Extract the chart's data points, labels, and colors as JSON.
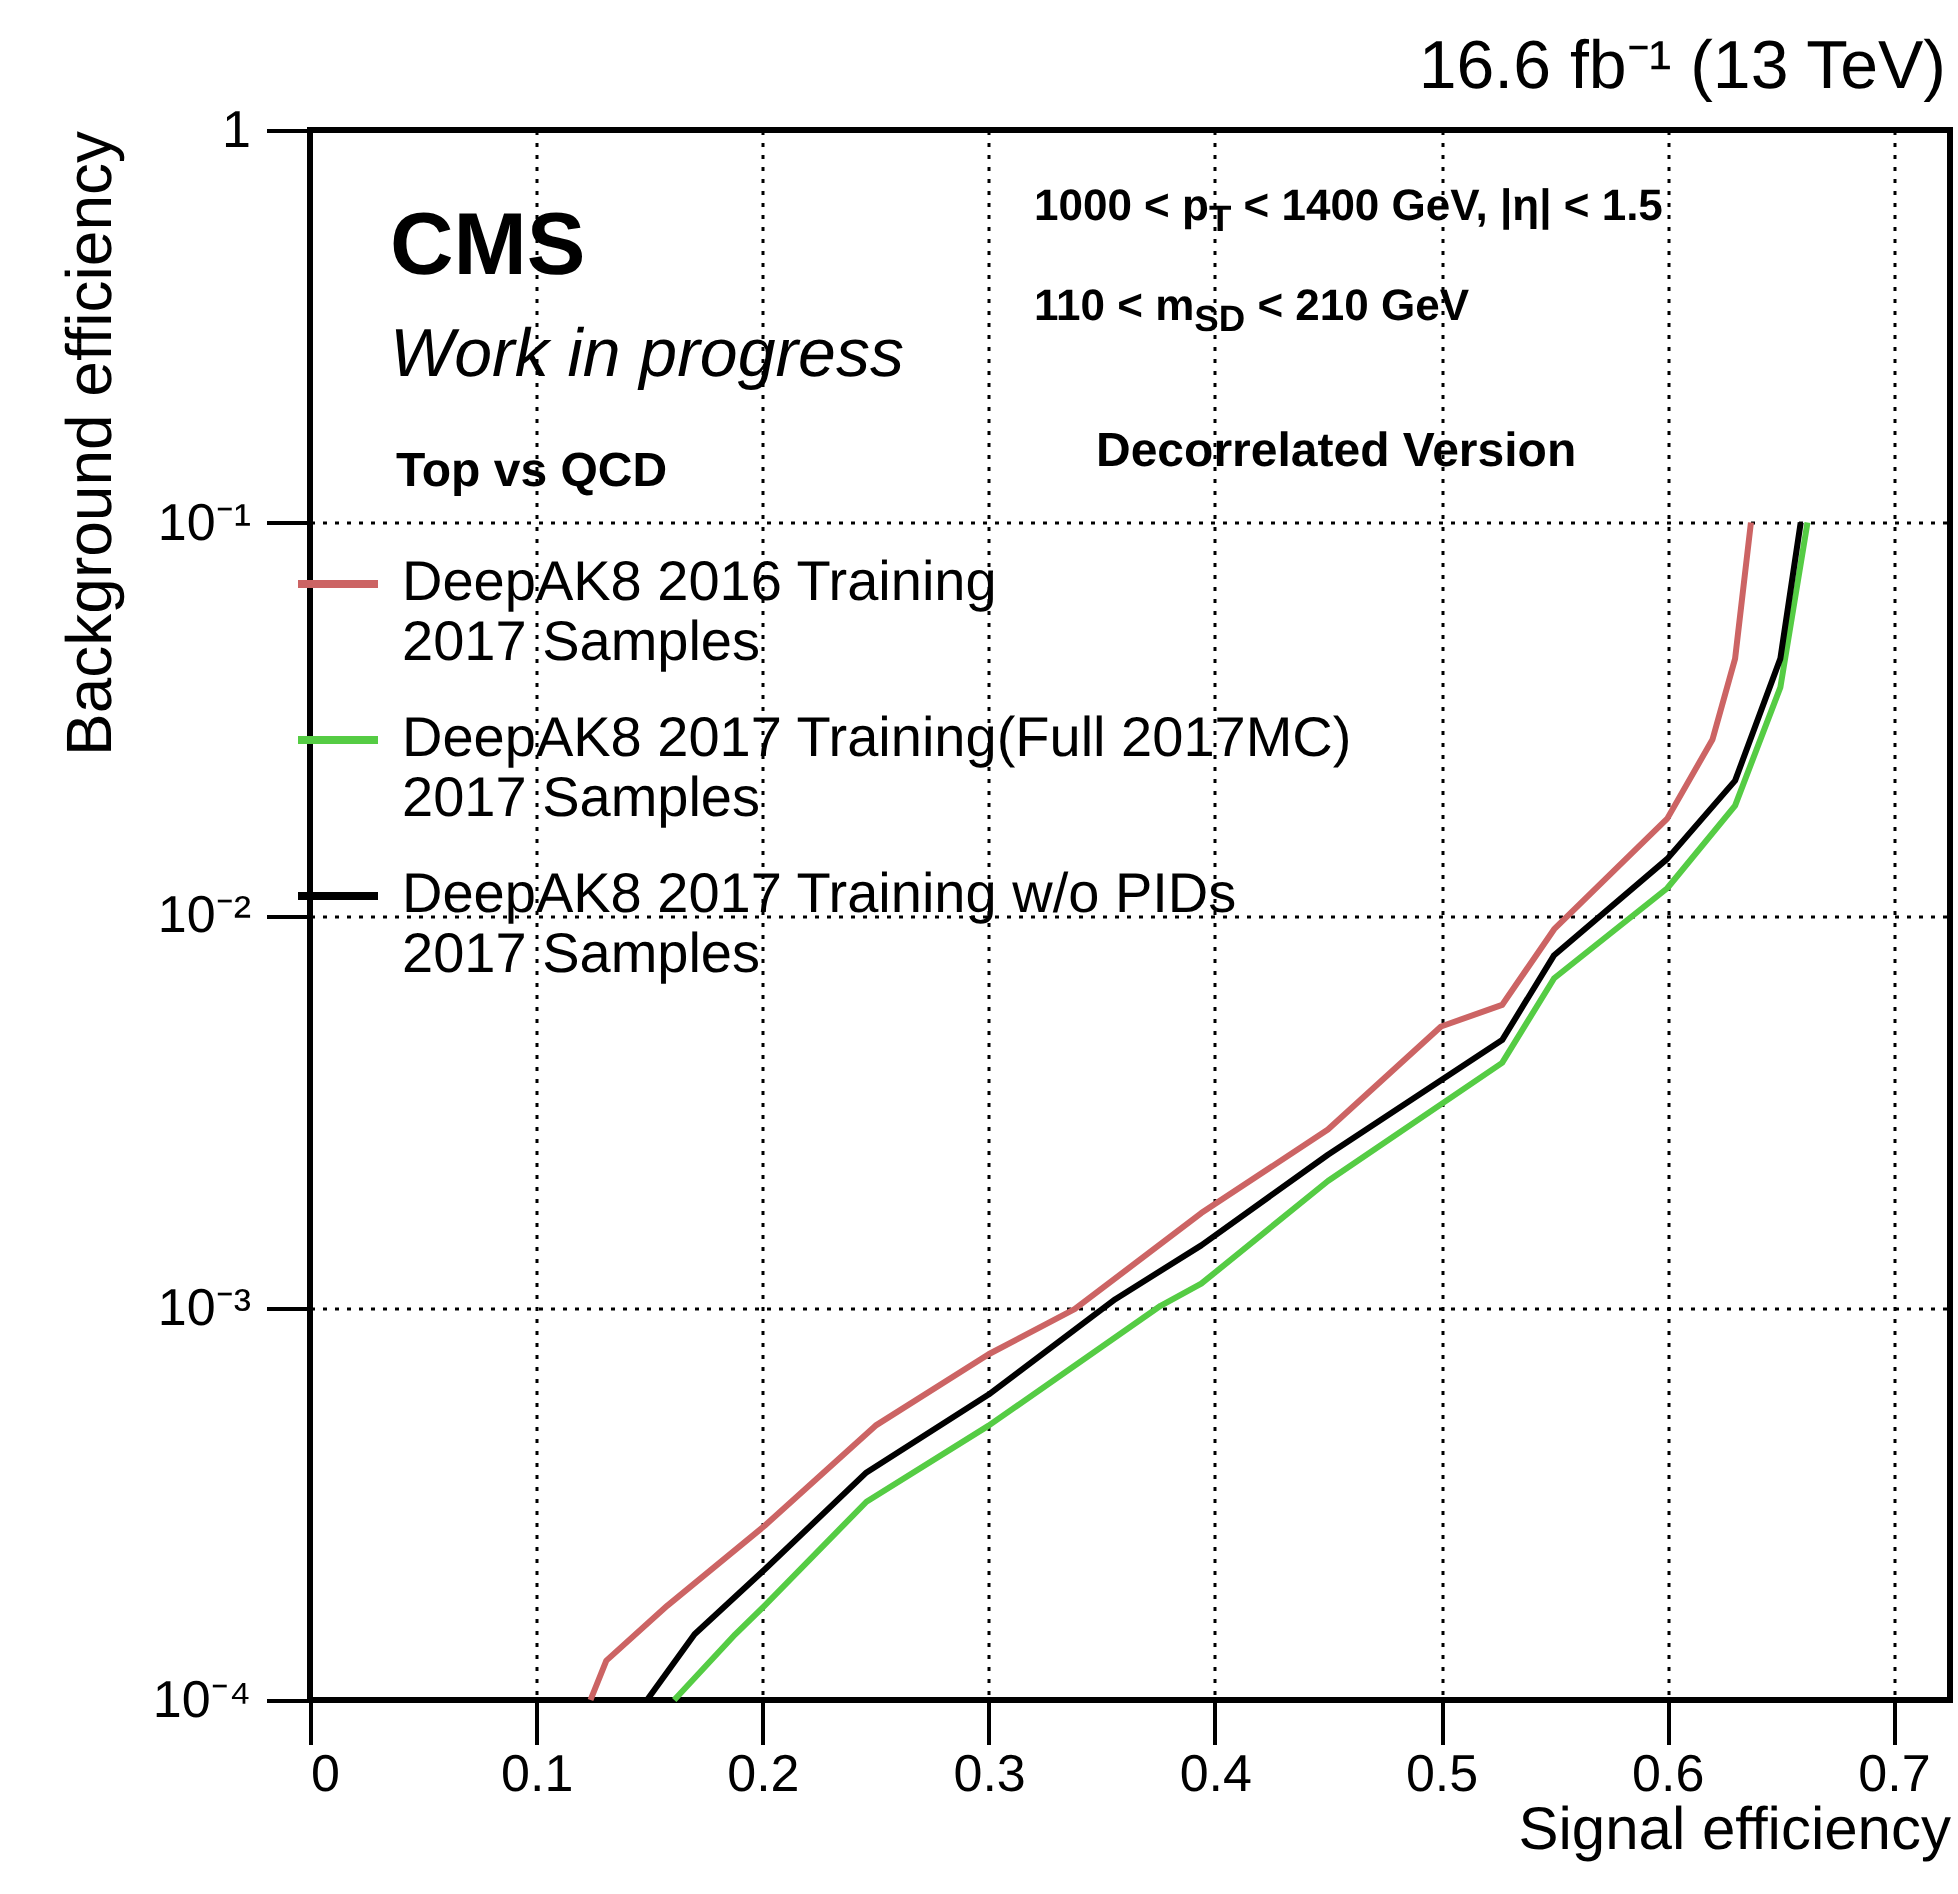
{
  "chart_data": {
    "type": "line",
    "title": "16.6 fb⁻¹ (13 TeV)",
    "xlabel": "Signal efficiency",
    "ylabel": "Background efficiency",
    "annotations": [
      "CMS",
      "Work in progress",
      "Top vs QCD",
      "1000 < p$_{T}$ < 1400 GeV, |η| < 1.5",
      "110 < m$_{SD}$ < 210 GeV",
      "Decorrelated Version"
    ],
    "xlim": [
      0,
      0.725
    ],
    "xticks": [
      0,
      0.1,
      0.2,
      0.3,
      0.4,
      0.5,
      0.6,
      0.7
    ],
    "ylim": [
      0.0001,
      1
    ],
    "yticks": [
      {
        "value": 0.0001,
        "label": "10⁻⁴"
      },
      {
        "value": 0.001,
        "label": "10⁻³"
      },
      {
        "value": 0.01,
        "label": "10⁻²"
      },
      {
        "value": 0.1,
        "label": "10⁻¹"
      },
      1
    ],
    "log": "y",
    "grid": true,
    "legend": "top left",
    "series": [
      {
        "name": "DeepAK8 2016 Training\n2017 Samples",
        "color": "#cc6464",
        "x": [
          0.124,
          0.131,
          0.158,
          0.201,
          0.25,
          0.3,
          0.338,
          0.394,
          0.45,
          0.5,
          0.527,
          0.55,
          0.6,
          0.62,
          0.63,
          0.637
        ],
        "values": [
          0.0001,
          0.000126,
          0.000174,
          0.000278,
          0.0005,
          0.00076,
          0.00099,
          0.00174,
          0.00284,
          0.0052,
          0.0059,
          0.0092,
          0.0176,
          0.028,
          0.045,
          0.1
        ]
      },
      {
        "name": "DeepAK8 2017 Training(Full 2017MC)\n2017 Samples",
        "color": "#55cc44",
        "x": [
          0.161,
          0.188,
          0.201,
          0.246,
          0.3,
          0.376,
          0.394,
          0.45,
          0.527,
          0.55,
          0.6,
          0.63,
          0.65,
          0.662
        ],
        "values": [
          0.0001,
          0.000147,
          0.000174,
          0.00032,
          0.0005,
          0.00101,
          0.00115,
          0.0021,
          0.0042,
          0.0069,
          0.0117,
          0.019,
          0.038,
          0.1
        ]
      },
      {
        "name": "DeepAK8 2017 Training w/o PIDs\n2017 Samples",
        "color": "#000000",
        "x": [
          0.149,
          0.17,
          0.201,
          0.246,
          0.3,
          0.356,
          0.394,
          0.45,
          0.527,
          0.55,
          0.6,
          0.63,
          0.65,
          0.659
        ],
        "values": [
          0.0001,
          0.000147,
          0.000215,
          0.00038,
          0.0006,
          0.00105,
          0.00144,
          0.00245,
          0.0048,
          0.0079,
          0.0139,
          0.022,
          0.045,
          0.1
        ]
      }
    ]
  }
}
